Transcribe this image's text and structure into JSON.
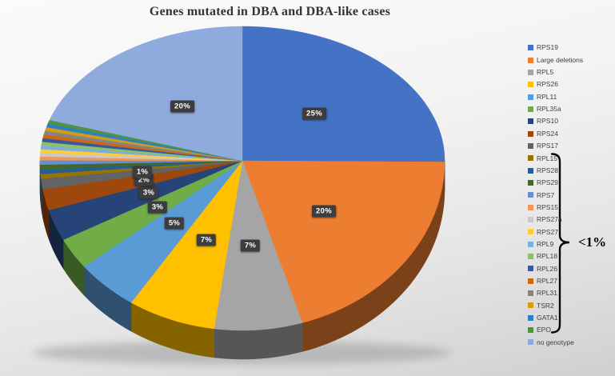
{
  "chart_data": {
    "type": "pie",
    "effect": "3d",
    "title": "Genes mutated in DBA and DBA-like cases",
    "legend_position": "right",
    "data_labels_unit": "%",
    "slices": [
      {
        "name": "RPS19",
        "value": 25,
        "label": "25%",
        "color": "#4472C4"
      },
      {
        "name": "Large deletions",
        "value": 20,
        "label": "20%",
        "color": "#ED7D31"
      },
      {
        "name": "RPL5",
        "value": 7,
        "label": "7%",
        "color": "#A5A5A5"
      },
      {
        "name": "RPS26",
        "value": 7,
        "label": "7%",
        "color": "#FFC000"
      },
      {
        "name": "RPL11",
        "value": 5,
        "label": "5%",
        "color": "#5B9BD5"
      },
      {
        "name": "RPL35a",
        "value": 3,
        "label": "3%",
        "color": "#70AD47"
      },
      {
        "name": "RPS10",
        "value": 3,
        "label": "3%",
        "color": "#264478"
      },
      {
        "name": "RPS24",
        "value": 2,
        "label": "2%",
        "color": "#9E480E"
      },
      {
        "name": "RPS17",
        "value": 1,
        "label": "1%",
        "color": "#636363"
      },
      {
        "name": "RPL15",
        "value": 0.4375,
        "label": "",
        "color": "#997300"
      },
      {
        "name": "RPS28",
        "value": 0.4375,
        "label": "",
        "color": "#255E91"
      },
      {
        "name": "RPS29",
        "value": 0.4375,
        "label": "",
        "color": "#43682B"
      },
      {
        "name": "RPS7",
        "value": 0.4375,
        "label": "",
        "color": "#698ED0"
      },
      {
        "name": "RPS15",
        "value": 0.4375,
        "label": "",
        "color": "#F1975A"
      },
      {
        "name": "RPS27a",
        "value": 0.4375,
        "label": "",
        "color": "#C9C9C9"
      },
      {
        "name": "RPS27",
        "value": 0.4375,
        "label": "",
        "color": "#FFCD33"
      },
      {
        "name": "RPL9",
        "value": 0.4375,
        "label": "",
        "color": "#7CAFDD"
      },
      {
        "name": "RPL18",
        "value": 0.4375,
        "label": "",
        "color": "#8CC168"
      },
      {
        "name": "RPL26",
        "value": 0.4375,
        "label": "",
        "color": "#38589F"
      },
      {
        "name": "RPL27",
        "value": 0.4375,
        "label": "",
        "color": "#CB6A15"
      },
      {
        "name": "RPL31",
        "value": 0.4375,
        "label": "",
        "color": "#848484"
      },
      {
        "name": "TSR2",
        "value": 0.4375,
        "label": "",
        "color": "#D39C13"
      },
      {
        "name": "GATA1",
        "value": 0.4375,
        "label": "",
        "color": "#2E80C6"
      },
      {
        "name": "EPO",
        "value": 0.4375,
        "label": "",
        "color": "#4F9240"
      },
      {
        "name": "no genotype",
        "value": 20,
        "label": "20%",
        "color": "#8FAADC"
      }
    ],
    "bracket": {
      "label": "<1%",
      "from": "RPL15",
      "to": "EPO"
    }
  }
}
